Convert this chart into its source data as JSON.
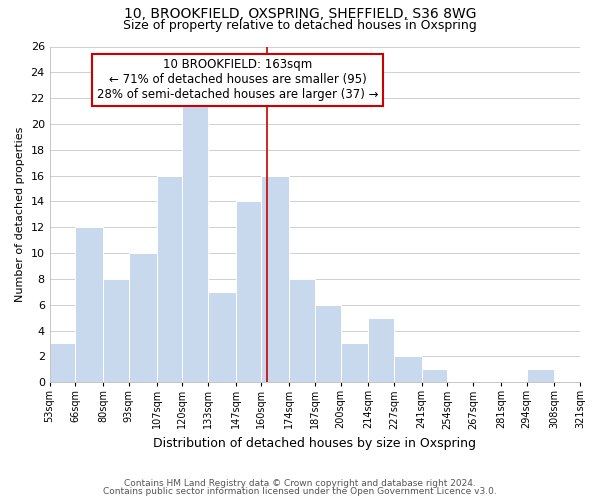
{
  "title1": "10, BROOKFIELD, OXSPRING, SHEFFIELD, S36 8WG",
  "title2": "Size of property relative to detached houses in Oxspring",
  "xlabel": "Distribution of detached houses by size in Oxspring",
  "ylabel": "Number of detached properties",
  "bins": [
    53,
    66,
    80,
    93,
    107,
    120,
    133,
    147,
    160,
    174,
    187,
    200,
    214,
    227,
    241,
    254,
    267,
    281,
    294,
    308,
    321
  ],
  "counts": [
    3,
    12,
    8,
    10,
    16,
    22,
    7,
    14,
    16,
    8,
    6,
    3,
    5,
    2,
    1,
    0,
    0,
    0,
    1,
    0
  ],
  "bar_color": "#c9d9ed",
  "bar_edge_color": "#ffffff",
  "grid_color": "#d0d0d0",
  "property_line_x": 163,
  "property_line_color": "#cc0000",
  "annotation_line1": "10 BROOKFIELD: 163sqm",
  "annotation_line2": "← 71% of detached houses are smaller (95)",
  "annotation_line3": "28% of semi-detached houses are larger (37) →",
  "annotation_box_color": "#ffffff",
  "annotation_box_edge_color": "#cc0000",
  "ylim": [
    0,
    26
  ],
  "yticks": [
    0,
    2,
    4,
    6,
    8,
    10,
    12,
    14,
    16,
    18,
    20,
    22,
    24,
    26
  ],
  "tick_labels": [
    "53sqm",
    "66sqm",
    "80sqm",
    "93sqm",
    "107sqm",
    "120sqm",
    "133sqm",
    "147sqm",
    "160sqm",
    "174sqm",
    "187sqm",
    "200sqm",
    "214sqm",
    "227sqm",
    "241sqm",
    "254sqm",
    "267sqm",
    "281sqm",
    "294sqm",
    "308sqm",
    "321sqm"
  ],
  "footer1": "Contains HM Land Registry data © Crown copyright and database right 2024.",
  "footer2": "Contains public sector information licensed under the Open Government Licence v3.0.",
  "background_color": "#ffffff",
  "title1_fontsize": 10,
  "title2_fontsize": 9,
  "ylabel_fontsize": 8,
  "xlabel_fontsize": 9,
  "footer_fontsize": 6.5,
  "annot_fontsize": 8.5
}
